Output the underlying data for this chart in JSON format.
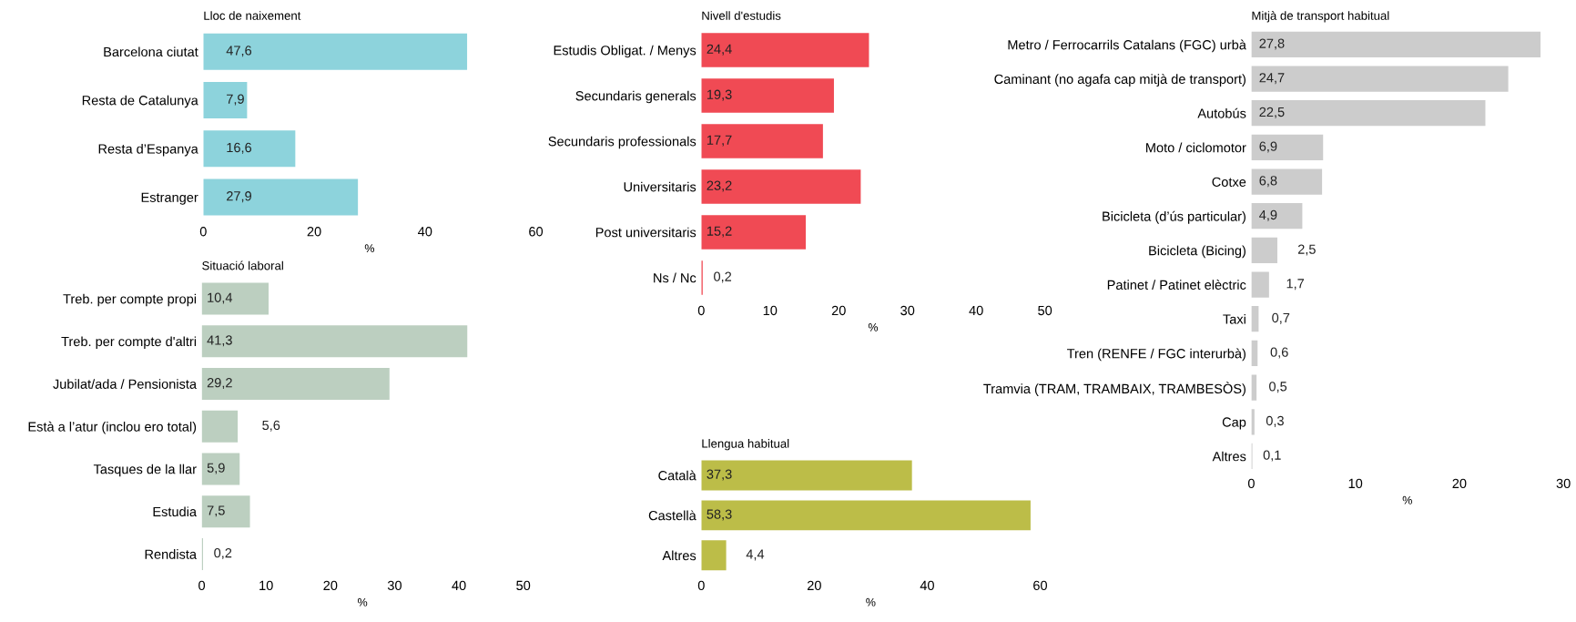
{
  "chart_data": [
    {
      "type": "bar",
      "orientation": "horizontal",
      "title": "Lloc de naixement",
      "xlabel": "%",
      "categories": [
        "Barcelona ciutat",
        "Resta de Catalunya",
        "Resta d’Espanya",
        "Estranger"
      ],
      "values": [
        47.6,
        7.9,
        16.6,
        27.9
      ],
      "value_labels": [
        "47,6",
        "7,9",
        "16,6",
        "27,9"
      ],
      "color": "#8dd3dc",
      "xlim": [
        0,
        60
      ],
      "xticks": [
        0,
        20,
        40,
        60
      ]
    },
    {
      "type": "bar",
      "orientation": "horizontal",
      "title": "Nivell d'estudis",
      "xlabel": "%",
      "categories": [
        "Estudis Obligat. / Menys",
        "Secundaris generals",
        "Secundaris professionals",
        "Universitaris",
        "Post universitaris",
        "Ns / Nc"
      ],
      "values": [
        24.4,
        19.3,
        17.7,
        23.2,
        15.2,
        0.2
      ],
      "value_labels": [
        "24,4",
        "19,3",
        "17,7",
        "23,2",
        "15,2",
        "0,2"
      ],
      "color": "#f04a54",
      "xlim": [
        0,
        50
      ],
      "xticks": [
        0,
        10,
        20,
        30,
        40,
        50
      ]
    },
    {
      "type": "bar",
      "orientation": "horizontal",
      "title": "Mitjà de transport habitual",
      "xlabel": "%",
      "categories": [
        "Metro / Ferrocarrils Catalans (FGC) urbà",
        "Caminant (no agafa cap mitjà de transport)",
        "Autobús",
        "Moto / ciclomotor",
        "Cotxe",
        "Bicicleta (d’ús particular)",
        "Bicicleta (Bicing)",
        "Patinet / Patinet elèctric",
        "Taxi",
        "Tren (RENFE / FGC interurbà)",
        "Tramvia (TRAM, TRAMBAIX, TRAMBESÒS)",
        "Cap",
        "Altres"
      ],
      "values": [
        27.8,
        24.7,
        22.5,
        6.9,
        6.8,
        4.9,
        2.5,
        1.7,
        0.7,
        0.6,
        0.5,
        0.3,
        0.1
      ],
      "value_labels": [
        "27,8",
        "24,7",
        "22,5",
        "6,9",
        "6,8",
        "4,9",
        "2,5",
        "1,7",
        "0,7",
        "0,6",
        "0,5",
        "0,3",
        "0,1"
      ],
      "color": "#cccccc",
      "xlim": [
        0,
        30
      ],
      "xticks": [
        0,
        10,
        20,
        30
      ]
    },
    {
      "type": "bar",
      "orientation": "horizontal",
      "title": "Situació laboral",
      "xlabel": "%",
      "categories": [
        "Treb. per compte propi",
        "Treb. per compte d'altri",
        "Jubilat/ada / Pensionista",
        "Està a l’atur (inclou ero total)",
        "Tasques de la llar",
        "Estudia",
        "Rendista"
      ],
      "values": [
        10.4,
        41.3,
        29.2,
        5.6,
        5.9,
        7.5,
        0.2
      ],
      "value_labels": [
        "10,4",
        "41,3",
        "29,2",
        "5,6",
        "5,9",
        "7,5",
        "0,2"
      ],
      "color": "#bccfc0",
      "xlim": [
        0,
        50
      ],
      "xticks": [
        0,
        10,
        20,
        30,
        40,
        50
      ]
    },
    {
      "type": "bar",
      "orientation": "horizontal",
      "title": "Llengua habitual",
      "xlabel": "%",
      "categories": [
        "Català",
        "Castellà",
        "Altres"
      ],
      "values": [
        37.3,
        58.3,
        4.4
      ],
      "value_labels": [
        "37,3",
        "58,3",
        "4,4"
      ],
      "color": "#bcbd48",
      "xlim": [
        0,
        60
      ],
      "xticks": [
        0,
        20,
        40,
        60
      ]
    }
  ]
}
